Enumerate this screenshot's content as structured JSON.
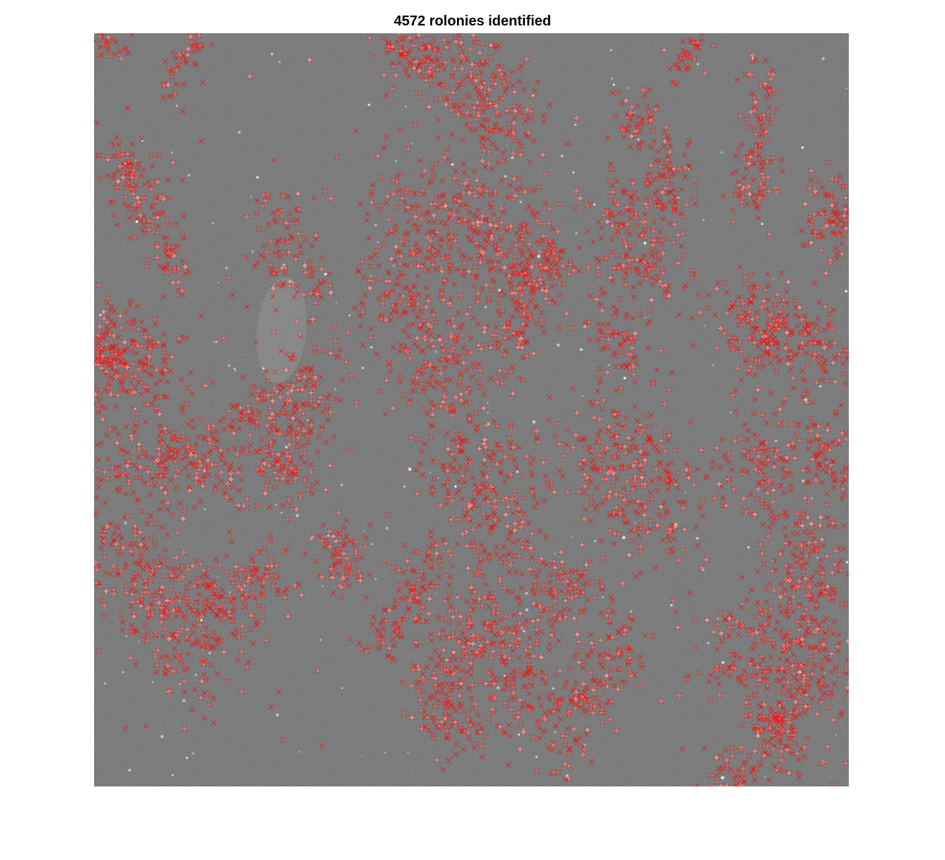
{
  "figure": {
    "title": "4572 rolonies identified"
  },
  "image": {
    "background_color": "#7d7d7d",
    "marker_color": "#ff0000",
    "marker_symbol": "x",
    "bright_spot_color": "#ffffff",
    "marker_count": 4572
  }
}
